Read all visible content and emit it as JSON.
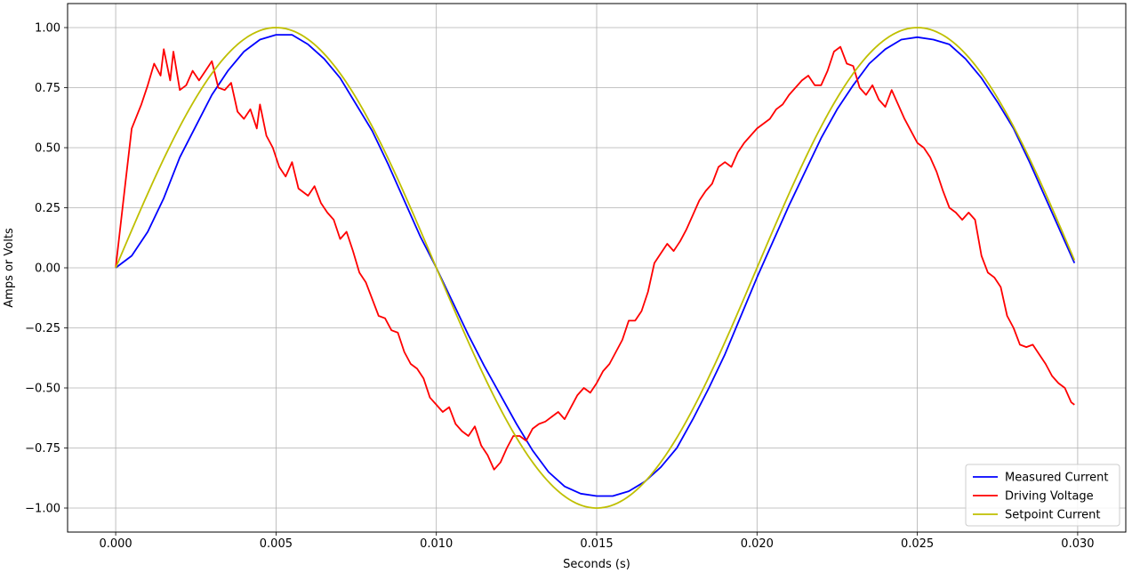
{
  "chart_data": {
    "type": "line",
    "title": "",
    "xlabel": "Seconds (s)",
    "ylabel": "Amps or Volts",
    "xlim": [
      -0.0015,
      0.0315
    ],
    "ylim": [
      -1.1,
      1.1
    ],
    "xticks": [
      0.0,
      0.005,
      0.01,
      0.015,
      0.02,
      0.025,
      0.03
    ],
    "xtick_labels": [
      "0.000",
      "0.005",
      "0.010",
      "0.015",
      "0.020",
      "0.025",
      "0.030"
    ],
    "yticks": [
      -1.0,
      -0.75,
      -0.5,
      -0.25,
      0.0,
      0.25,
      0.5,
      0.75,
      1.0
    ],
    "ytick_labels": [
      "−1.00",
      "−0.75",
      "−0.50",
      "−0.25",
      "0.00",
      "0.25",
      "0.50",
      "0.75",
      "1.00"
    ],
    "grid": true,
    "legend_position": "bottom-right",
    "series": [
      {
        "name": "Measured Current",
        "color": "#0000ff",
        "points": [
          [
            0.0,
            0.0
          ],
          [
            0.0005,
            0.05
          ],
          [
            0.001,
            0.15
          ],
          [
            0.0015,
            0.29
          ],
          [
            0.002,
            0.46
          ],
          [
            0.0025,
            0.59
          ],
          [
            0.003,
            0.72
          ],
          [
            0.0035,
            0.82
          ],
          [
            0.004,
            0.9
          ],
          [
            0.0045,
            0.95
          ],
          [
            0.005,
            0.97
          ],
          [
            0.0055,
            0.97
          ],
          [
            0.006,
            0.93
          ],
          [
            0.0065,
            0.87
          ],
          [
            0.007,
            0.79
          ],
          [
            0.0075,
            0.68
          ],
          [
            0.008,
            0.57
          ],
          [
            0.0085,
            0.43
          ],
          [
            0.009,
            0.28
          ],
          [
            0.0095,
            0.13
          ],
          [
            0.01,
            0.0
          ],
          [
            0.0105,
            -0.14
          ],
          [
            0.011,
            -0.28
          ],
          [
            0.0115,
            -0.41
          ],
          [
            0.012,
            -0.53
          ],
          [
            0.0125,
            -0.65
          ],
          [
            0.013,
            -0.76
          ],
          [
            0.0135,
            -0.85
          ],
          [
            0.014,
            -0.91
          ],
          [
            0.0145,
            -0.94
          ],
          [
            0.015,
            -0.95
          ],
          [
            0.0155,
            -0.95
          ],
          [
            0.016,
            -0.93
          ],
          [
            0.0165,
            -0.89
          ],
          [
            0.017,
            -0.83
          ],
          [
            0.0175,
            -0.75
          ],
          [
            0.018,
            -0.63
          ],
          [
            0.0185,
            -0.5
          ],
          [
            0.019,
            -0.36
          ],
          [
            0.0195,
            -0.2
          ],
          [
            0.02,
            -0.04
          ],
          [
            0.0205,
            0.11
          ],
          [
            0.021,
            0.26
          ],
          [
            0.0215,
            0.4
          ],
          [
            0.022,
            0.54
          ],
          [
            0.0225,
            0.66
          ],
          [
            0.023,
            0.76
          ],
          [
            0.0235,
            0.85
          ],
          [
            0.024,
            0.91
          ],
          [
            0.0245,
            0.95
          ],
          [
            0.025,
            0.96
          ],
          [
            0.0255,
            0.95
          ],
          [
            0.026,
            0.93
          ],
          [
            0.0265,
            0.87
          ],
          [
            0.027,
            0.79
          ],
          [
            0.0275,
            0.69
          ],
          [
            0.028,
            0.58
          ],
          [
            0.0285,
            0.44
          ],
          [
            0.029,
            0.29
          ],
          [
            0.0295,
            0.14
          ],
          [
            0.0299,
            0.02
          ]
        ]
      },
      {
        "name": "Driving Voltage",
        "color": "#ff0000",
        "points": [
          [
            0.0,
            0.0
          ],
          [
            0.0003,
            0.35
          ],
          [
            0.0005,
            0.58
          ],
          [
            0.0008,
            0.68
          ],
          [
            0.001,
            0.76
          ],
          [
            0.0012,
            0.85
          ],
          [
            0.0014,
            0.8
          ],
          [
            0.0015,
            0.91
          ],
          [
            0.0017,
            0.78
          ],
          [
            0.0018,
            0.9
          ],
          [
            0.002,
            0.74
          ],
          [
            0.0022,
            0.76
          ],
          [
            0.0024,
            0.82
          ],
          [
            0.0026,
            0.78
          ],
          [
            0.0028,
            0.82
          ],
          [
            0.003,
            0.86
          ],
          [
            0.0032,
            0.75
          ],
          [
            0.0034,
            0.74
          ],
          [
            0.0036,
            0.77
          ],
          [
            0.0038,
            0.65
          ],
          [
            0.004,
            0.62
          ],
          [
            0.0042,
            0.66
          ],
          [
            0.0044,
            0.58
          ],
          [
            0.0045,
            0.68
          ],
          [
            0.0047,
            0.55
          ],
          [
            0.0049,
            0.5
          ],
          [
            0.0051,
            0.42
          ],
          [
            0.0053,
            0.38
          ],
          [
            0.0055,
            0.44
          ],
          [
            0.0057,
            0.33
          ],
          [
            0.006,
            0.3
          ],
          [
            0.0062,
            0.34
          ],
          [
            0.0064,
            0.27
          ],
          [
            0.0066,
            0.23
          ],
          [
            0.0068,
            0.2
          ],
          [
            0.007,
            0.12
          ],
          [
            0.0072,
            0.15
          ],
          [
            0.0074,
            0.07
          ],
          [
            0.0076,
            -0.02
          ],
          [
            0.0078,
            -0.06
          ],
          [
            0.008,
            -0.13
          ],
          [
            0.0082,
            -0.2
          ],
          [
            0.0084,
            -0.21
          ],
          [
            0.0086,
            -0.26
          ],
          [
            0.0088,
            -0.27
          ],
          [
            0.009,
            -0.35
          ],
          [
            0.0092,
            -0.4
          ],
          [
            0.0094,
            -0.42
          ],
          [
            0.0096,
            -0.46
          ],
          [
            0.0098,
            -0.54
          ],
          [
            0.01,
            -0.57
          ],
          [
            0.0102,
            -0.6
          ],
          [
            0.0104,
            -0.58
          ],
          [
            0.0106,
            -0.65
          ],
          [
            0.0108,
            -0.68
          ],
          [
            0.011,
            -0.7
          ],
          [
            0.0112,
            -0.66
          ],
          [
            0.0114,
            -0.74
          ],
          [
            0.0116,
            -0.78
          ],
          [
            0.0118,
            -0.84
          ],
          [
            0.012,
            -0.81
          ],
          [
            0.0122,
            -0.75
          ],
          [
            0.0124,
            -0.7
          ],
          [
            0.0126,
            -0.7
          ],
          [
            0.0128,
            -0.72
          ],
          [
            0.013,
            -0.67
          ],
          [
            0.0132,
            -0.65
          ],
          [
            0.0134,
            -0.64
          ],
          [
            0.0136,
            -0.62
          ],
          [
            0.0138,
            -0.6
          ],
          [
            0.014,
            -0.63
          ],
          [
            0.0142,
            -0.58
          ],
          [
            0.0144,
            -0.53
          ],
          [
            0.0146,
            -0.5
          ],
          [
            0.0148,
            -0.52
          ],
          [
            0.015,
            -0.48
          ],
          [
            0.0152,
            -0.43
          ],
          [
            0.0154,
            -0.4
          ],
          [
            0.0156,
            -0.35
          ],
          [
            0.0158,
            -0.3
          ],
          [
            0.016,
            -0.22
          ],
          [
            0.0162,
            -0.22
          ],
          [
            0.0164,
            -0.18
          ],
          [
            0.0166,
            -0.1
          ],
          [
            0.0168,
            0.02
          ],
          [
            0.017,
            0.06
          ],
          [
            0.0172,
            0.1
          ],
          [
            0.0174,
            0.07
          ],
          [
            0.0176,
            0.11
          ],
          [
            0.0178,
            0.16
          ],
          [
            0.018,
            0.22
          ],
          [
            0.0182,
            0.28
          ],
          [
            0.0184,
            0.32
          ],
          [
            0.0186,
            0.35
          ],
          [
            0.0188,
            0.42
          ],
          [
            0.019,
            0.44
          ],
          [
            0.0192,
            0.42
          ],
          [
            0.0194,
            0.48
          ],
          [
            0.0196,
            0.52
          ],
          [
            0.0198,
            0.55
          ],
          [
            0.02,
            0.58
          ],
          [
            0.0202,
            0.6
          ],
          [
            0.0204,
            0.62
          ],
          [
            0.0206,
            0.66
          ],
          [
            0.0208,
            0.68
          ],
          [
            0.021,
            0.72
          ],
          [
            0.0212,
            0.75
          ],
          [
            0.0214,
            0.78
          ],
          [
            0.0216,
            0.8
          ],
          [
            0.0218,
            0.76
          ],
          [
            0.022,
            0.76
          ],
          [
            0.0222,
            0.82
          ],
          [
            0.0224,
            0.9
          ],
          [
            0.0226,
            0.92
          ],
          [
            0.0228,
            0.85
          ],
          [
            0.023,
            0.84
          ],
          [
            0.0232,
            0.75
          ],
          [
            0.0234,
            0.72
          ],
          [
            0.0236,
            0.76
          ],
          [
            0.0238,
            0.7
          ],
          [
            0.024,
            0.67
          ],
          [
            0.0242,
            0.74
          ],
          [
            0.0244,
            0.68
          ],
          [
            0.0246,
            0.62
          ],
          [
            0.0248,
            0.57
          ],
          [
            0.025,
            0.52
          ],
          [
            0.0252,
            0.5
          ],
          [
            0.0254,
            0.46
          ],
          [
            0.0256,
            0.4
          ],
          [
            0.0258,
            0.32
          ],
          [
            0.026,
            0.25
          ],
          [
            0.0262,
            0.23
          ],
          [
            0.0264,
            0.2
          ],
          [
            0.0266,
            0.23
          ],
          [
            0.0268,
            0.2
          ],
          [
            0.027,
            0.05
          ],
          [
            0.0272,
            -0.02
          ],
          [
            0.0274,
            -0.04
          ],
          [
            0.0276,
            -0.08
          ],
          [
            0.0278,
            -0.2
          ],
          [
            0.028,
            -0.25
          ],
          [
            0.0282,
            -0.32
          ],
          [
            0.0284,
            -0.33
          ],
          [
            0.0286,
            -0.32
          ],
          [
            0.0288,
            -0.36
          ],
          [
            0.029,
            -0.4
          ],
          [
            0.0292,
            -0.45
          ],
          [
            0.0294,
            -0.48
          ],
          [
            0.0296,
            -0.5
          ],
          [
            0.0298,
            -0.56
          ],
          [
            0.0299,
            -0.57
          ]
        ]
      },
      {
        "name": "Setpoint Current",
        "color": "#bfbf00",
        "function": "sine",
        "amplitude": 1.0,
        "period": 0.02,
        "x_range": [
          0.0,
          0.0299
        ]
      }
    ]
  }
}
